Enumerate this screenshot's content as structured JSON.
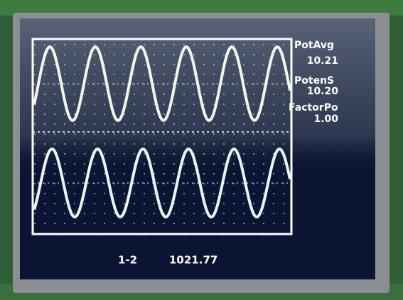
{
  "readouts": [
    {
      "label": "PotAvg",
      "value": "10.21"
    },
    {
      "label": "PotenS",
      "value": "10.20"
    },
    {
      "label": "FactorPo",
      "value": "1.00"
    }
  ],
  "footer": {
    "channel": "1-2",
    "reading": "1021.77"
  }
}
